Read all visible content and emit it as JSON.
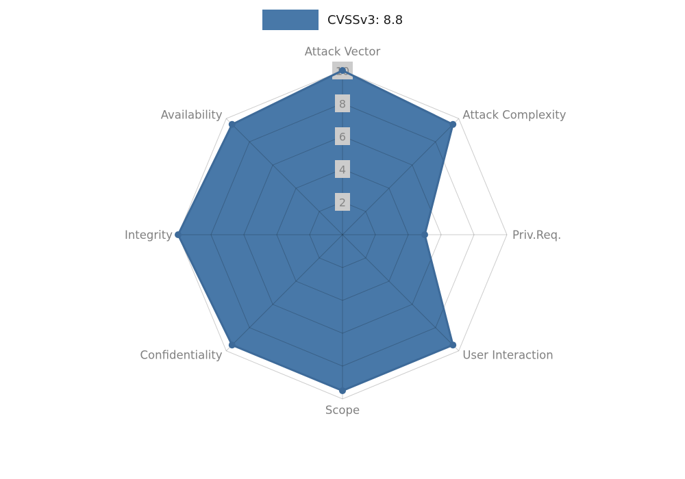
{
  "legend": {
    "label": "CVSSv3: 8.8",
    "swatch_color": "#4878a8"
  },
  "chart_data": {
    "type": "radar",
    "title": "",
    "series_name": "CVSSv3: 8.8",
    "categories": [
      "Attack Vector",
      "Attack Complexity",
      "Priv.Req.",
      "User Interaction",
      "Scope",
      "Confidentiality",
      "Integrity",
      "Availability"
    ],
    "values": [
      10,
      9.5,
      5,
      9.5,
      9.5,
      9.5,
      10,
      9.5
    ],
    "ticks": [
      2,
      4,
      6,
      8,
      10
    ],
    "rlim": [
      0,
      10
    ],
    "grid": "on",
    "legend_position": "top-center",
    "colors": {
      "fill": "#4878a8",
      "outline": "#3d6a99",
      "marker": "#3d6a99",
      "grid_line": "rgba(0,0,0,0.2)",
      "axis_label": "#808080",
      "tick_text": "#848484",
      "tick_bg": "#cccccc"
    }
  }
}
